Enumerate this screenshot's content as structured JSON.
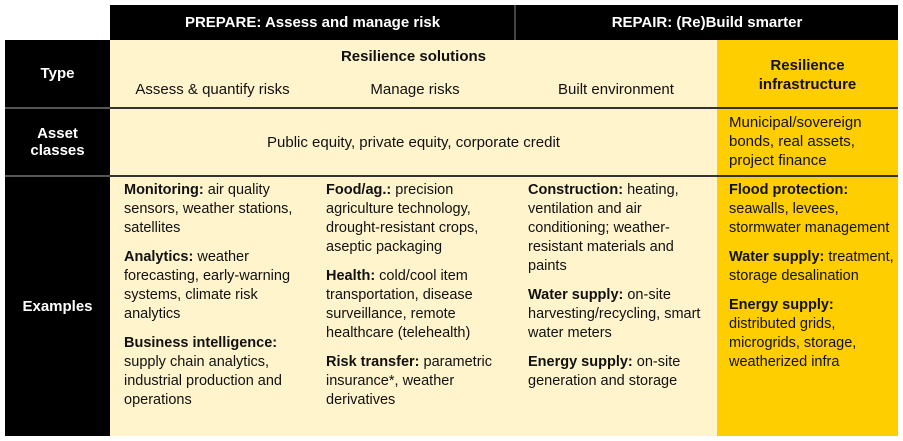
{
  "header": {
    "prepare": "PREPARE: Assess and manage risk",
    "repair": "REPAIR: (Re)Build smarter"
  },
  "rows": {
    "type": "Type",
    "asset": "Asset classes",
    "examples": "Examples"
  },
  "type": {
    "group": "Resilience solutions",
    "col1": "Assess & quantify risks",
    "col2": "Manage risks",
    "col3": "Built environment",
    "col4": "Resilience infrastructure"
  },
  "asset": {
    "solutions": "Public equity, private equity, corporate credit",
    "infra": "Municipal/sovereign bonds, real assets, project finance"
  },
  "examples": [
    [
      {
        "h": "Monitoring:",
        "t": " air quality sensors, weather stations, satellites"
      },
      {
        "h": "Analytics:",
        "t": " weather forecasting, early-warning systems, climate risk analytics"
      },
      {
        "h": "Business intelligence:",
        "t": " supply chain analytics, industrial production and operations"
      }
    ],
    [
      {
        "h": "Food/ag.:",
        "t": " precision agriculture technology, drought-resistant crops, aseptic packaging"
      },
      {
        "h": "Health:",
        "t": " cold/cool item transportation, disease surveillance, remote healthcare (telehealth)"
      },
      {
        "h": "Risk transfer:",
        "t": " parametric insurance*, weather derivatives"
      }
    ],
    [
      {
        "h": "Construction:",
        "t": " heating, ventilation and air conditioning; weather-resistant materials and paints"
      },
      {
        "h": "Water supply:",
        "t": " on-site harvesting/recycling, smart water meters"
      },
      {
        "h": "Energy supply:",
        "t": " on-site generation and storage"
      }
    ],
    [
      {
        "h": "Flood protection:",
        "t": " seawalls, levees, stormwater management"
      },
      {
        "h": "Water supply:",
        "t": " treatment, storage desalination"
      },
      {
        "h": "Energy supply:",
        "t": " distributed grids, microgrids, storage, weatherized infra"
      }
    ]
  ],
  "colors": {
    "black": "#000000",
    "light_yellow": "#FFF4CC",
    "gold": "#FFCE00"
  }
}
